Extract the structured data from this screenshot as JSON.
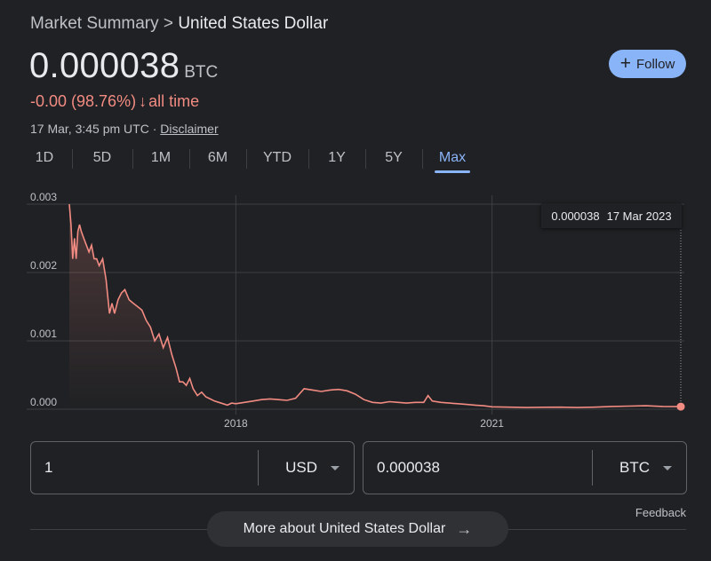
{
  "header": {
    "breadcrumb_parent": "Market Summary",
    "breadcrumb_sep": ">",
    "breadcrumb_current": "United States Dollar",
    "price_value": "0.000038",
    "price_unit": "BTC",
    "change_text": "-0.00 (98.76%)",
    "change_arrow": "↓",
    "change_period": "all time",
    "timestamp": "17 Mar, 3:45 pm UTC",
    "meta_sep": "·",
    "disclaimer": "Disclaimer",
    "follow_icon": "+",
    "follow_label": "Follow"
  },
  "tabs": [
    {
      "label": "1D",
      "active": false
    },
    {
      "label": "5D",
      "active": false
    },
    {
      "label": "1M",
      "active": false
    },
    {
      "label": "6M",
      "active": false
    },
    {
      "label": "YTD",
      "active": false
    },
    {
      "label": "1Y",
      "active": false
    },
    {
      "label": "5Y",
      "active": false
    },
    {
      "label": "Max",
      "active": true
    }
  ],
  "tooltip": {
    "value": "0.000038",
    "date": "17 Mar 2023"
  },
  "converter": {
    "from_amount": "1",
    "from_currency": "USD",
    "to_amount": "0.000038",
    "to_currency": "BTC"
  },
  "footer": {
    "feedback": "Feedback",
    "more_label": "More about United States Dollar",
    "more_icon": "→"
  },
  "colors": {
    "line": "#f28b82",
    "accent": "#8ab4f8",
    "grid": "#3c4043"
  },
  "chart_data": {
    "type": "line",
    "ylim": [
      0,
      0.003
    ],
    "y_ticks": [
      {
        "value": 0,
        "label": "0.000"
      },
      {
        "value": 0.001,
        "label": "0.001"
      },
      {
        "value": 0.002,
        "label": "0.002"
      },
      {
        "value": 0.003,
        "label": "0.003"
      }
    ],
    "x_ticks": [
      {
        "value": 2018,
        "label": "2018"
      },
      {
        "value": 2021,
        "label": "2021"
      }
    ],
    "xlim": [
      2016.05,
      2023.21
    ],
    "grid": true,
    "series": [
      {
        "x": [
          2016.05,
          2016.07,
          2016.09,
          2016.11,
          2016.13,
          2016.15,
          2016.17,
          2016.19,
          2016.22,
          2016.25,
          2016.28,
          2016.31,
          2016.34,
          2016.37,
          2016.4,
          2016.44,
          2016.48,
          2016.52,
          2016.55,
          2016.58,
          2016.62,
          2016.66,
          2016.7,
          2016.75,
          2016.8,
          2016.85,
          2016.9,
          2016.95,
          2017.0,
          2017.05,
          2017.1,
          2017.15,
          2017.2,
          2017.25,
          2017.3,
          2017.34,
          2017.38,
          2017.42,
          2017.46,
          2017.5,
          2017.55,
          2017.6,
          2017.65,
          2017.7,
          2017.75,
          2017.8,
          2017.85,
          2017.9,
          2017.95,
          2018.0,
          2018.1,
          2018.2,
          2018.3,
          2018.4,
          2018.5,
          2018.6,
          2018.7,
          2018.8,
          2018.9,
          2019.0,
          2019.1,
          2019.2,
          2019.3,
          2019.4,
          2019.5,
          2019.6,
          2019.7,
          2019.8,
          2019.9,
          2020.0,
          2020.1,
          2020.2,
          2020.25,
          2020.3,
          2020.4,
          2020.5,
          2020.6,
          2020.7,
          2020.8,
          2020.9,
          2021.0,
          2021.2,
          2021.4,
          2021.6,
          2021.8,
          2022.0,
          2022.2,
          2022.4,
          2022.6,
          2022.8,
          2023.0,
          2023.21
        ],
        "y": [
          0.003,
          0.0027,
          0.0022,
          0.0025,
          0.0022,
          0.0026,
          0.0027,
          0.0026,
          0.0025,
          0.0024,
          0.0023,
          0.0024,
          0.0022,
          0.0022,
          0.0021,
          0.0022,
          0.0019,
          0.0014,
          0.00155,
          0.0014,
          0.0016,
          0.0017,
          0.00175,
          0.0016,
          0.00155,
          0.0015,
          0.00145,
          0.0013,
          0.0012,
          0.001,
          0.0011,
          0.0009,
          0.00105,
          0.0008,
          0.0006,
          0.0004,
          0.0004,
          0.00035,
          0.00045,
          0.0003,
          0.0002,
          0.00025,
          0.00018,
          0.00015,
          0.00012,
          0.0001,
          8e-05,
          6e-05,
          9e-05,
          8e-05,
          0.0001,
          0.00012,
          0.00014,
          0.00015,
          0.00014,
          0.00013,
          0.00016,
          0.0003,
          0.00028,
          0.00026,
          0.00028,
          0.00029,
          0.00027,
          0.00022,
          0.00014,
          0.0001,
          9e-05,
          0.00011,
          0.0001,
          9e-05,
          0.0001,
          0.0001,
          0.0002,
          0.00012,
          0.0001,
          9e-05,
          8e-05,
          7e-05,
          6e-05,
          5e-05,
          3.5e-05,
          3e-05,
          2.5e-05,
          2.8e-05,
          3e-05,
          2.5e-05,
          3e-05,
          4e-05,
          4.5e-05,
          5e-05,
          4e-05,
          3.8e-05
        ]
      }
    ]
  }
}
